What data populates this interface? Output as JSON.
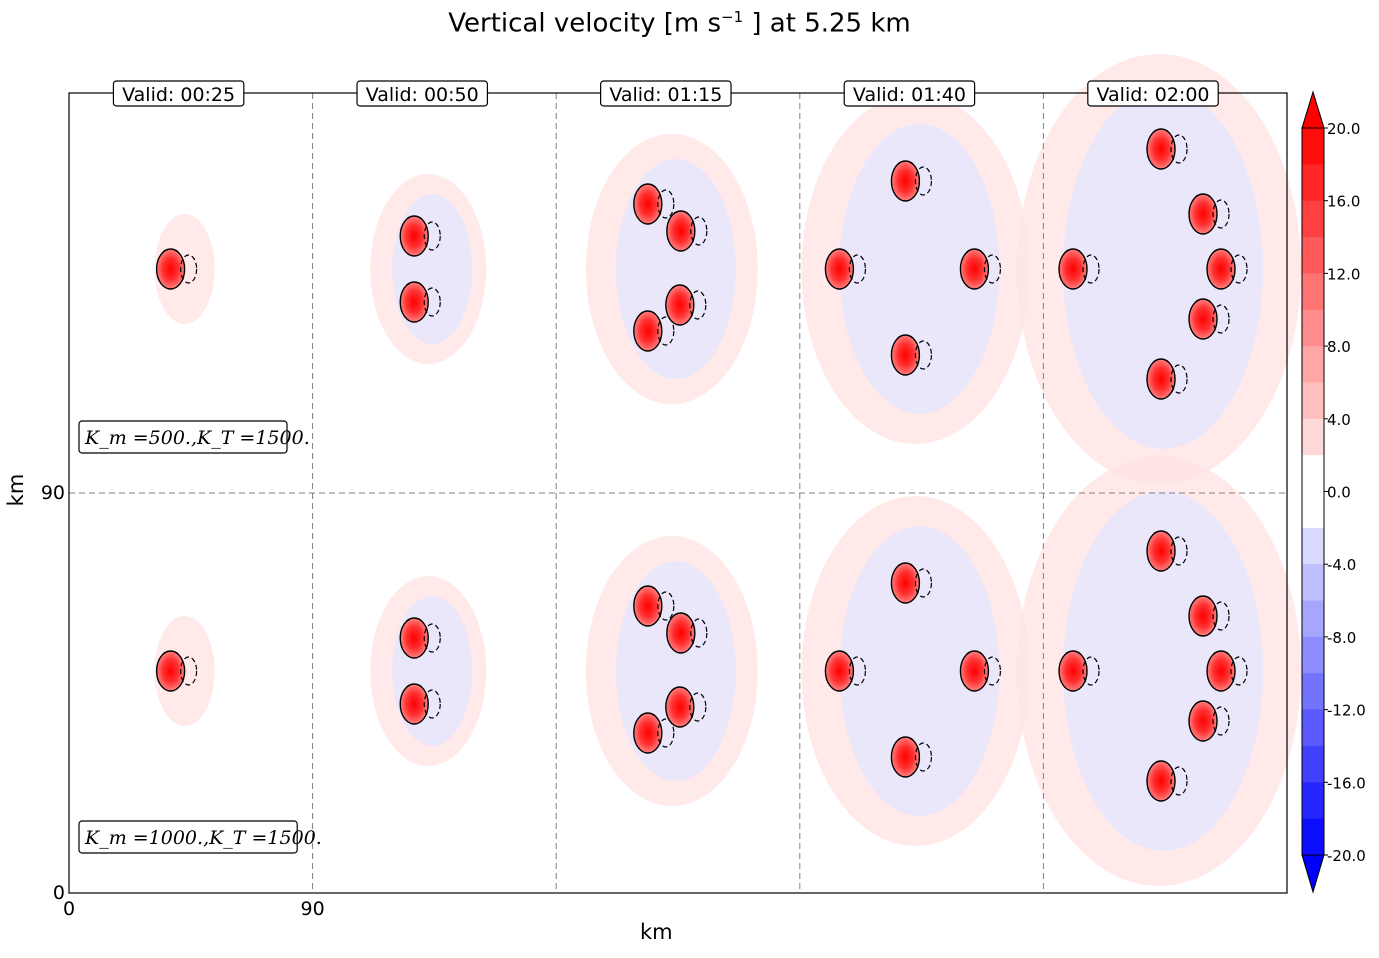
{
  "title_main": "Vertical velocity [m s",
  "title_sup": "−1",
  "title_tail": " ] at 5.25 km",
  "xlabel": "km",
  "ylabel": "km",
  "chart_data": {
    "type": "heatmap",
    "title": "Vertical velocity [m s^-1] at 5.25 km",
    "xlabel": "km",
    "ylabel": "km",
    "x_ticks": [
      "0",
      "90"
    ],
    "y_ticks": [
      "0",
      "90"
    ],
    "panel_titles": [
      "Valid: 00:25",
      "Valid: 00:50",
      "Valid: 01:15",
      "Valid: 01:40",
      "Valid: 02:00"
    ],
    "row_labels": [
      "K_m =500.,K_T =1500.",
      "K_m =1000.,K_T =1500."
    ],
    "colorbar": {
      "ticks": [
        "20.0",
        "16.0",
        "12.0",
        "8.0",
        "4.0",
        "0.0",
        "-4.0",
        "-8.0",
        "-12.0",
        "-16.0",
        "-20.0"
      ],
      "range": [
        -20,
        20
      ],
      "extend": "both",
      "cmap": "bwr"
    },
    "grid": "dashed panel separators"
  }
}
